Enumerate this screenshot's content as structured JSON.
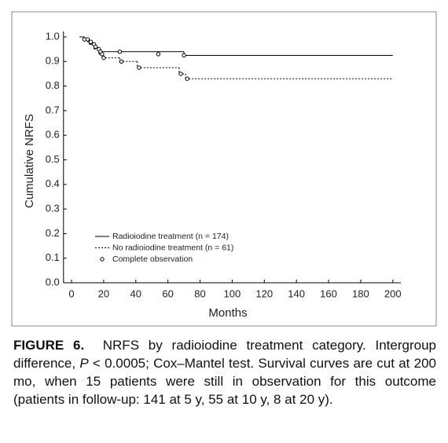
{
  "chart_data": {
    "type": "step",
    "x_label": "Months",
    "y_label": "Cumulative NRFS",
    "xlim": [
      -5,
      205
    ],
    "ylim": [
      0,
      1
    ],
    "xticks": [
      0,
      20,
      40,
      60,
      80,
      100,
      120,
      140,
      160,
      180,
      200
    ],
    "yticks": [
      {
        "value": 0,
        "label": "0.0"
      },
      0.1,
      0.2,
      0.3,
      0.4,
      0.5,
      0.6,
      0.7,
      0.8,
      0.9,
      {
        "value": 1,
        "label": "1.0"
      }
    ],
    "series": [
      {
        "name": "Radioiodine treatment (n = 174)",
        "style": "solid",
        "color": "#000000",
        "x": [
          5,
          8,
          10,
          12,
          14,
          16,
          18,
          70,
          200
        ],
        "values": [
          1.0,
          0.99,
          0.98,
          0.97,
          0.96,
          0.95,
          0.94,
          0.925,
          0.925
        ]
      },
      {
        "name": "No radioiodine treatment (n = 61)",
        "style": "dashed",
        "color": "#000000",
        "x": [
          5,
          8,
          11,
          14,
          17,
          19,
          30,
          41,
          67,
          71,
          200
        ],
        "values": [
          1.0,
          0.99,
          0.97,
          0.95,
          0.93,
          0.915,
          0.9,
          0.875,
          0.85,
          0.83,
          0.83
        ]
      },
      {
        "name": "Complete observation",
        "style": "marker",
        "color": "#000000",
        "x": [
          8,
          10,
          12,
          14,
          15,
          17,
          18,
          19,
          20,
          30,
          31,
          42,
          54,
          68,
          70,
          72
        ],
        "values": [
          0.99,
          0.99,
          0.98,
          0.97,
          0.96,
          0.95,
          0.94,
          0.93,
          0.915,
          0.94,
          0.9,
          0.875,
          0.93,
          0.85,
          0.925,
          0.83
        ]
      }
    ]
  },
  "caption": {
    "label": "FIGURE 6.",
    "parts": [
      "NRFS by radioiodine treatment category. Intergroup difference, ",
      "P",
      " < 0.0005; Cox–Mantel test. Survival curves are cut at 200 mo, when 15 patients were still in observation for this outcome (patients in follow-up: 141 at 5 y, 55 at 10 y, 8 at 20 y)."
    ]
  }
}
